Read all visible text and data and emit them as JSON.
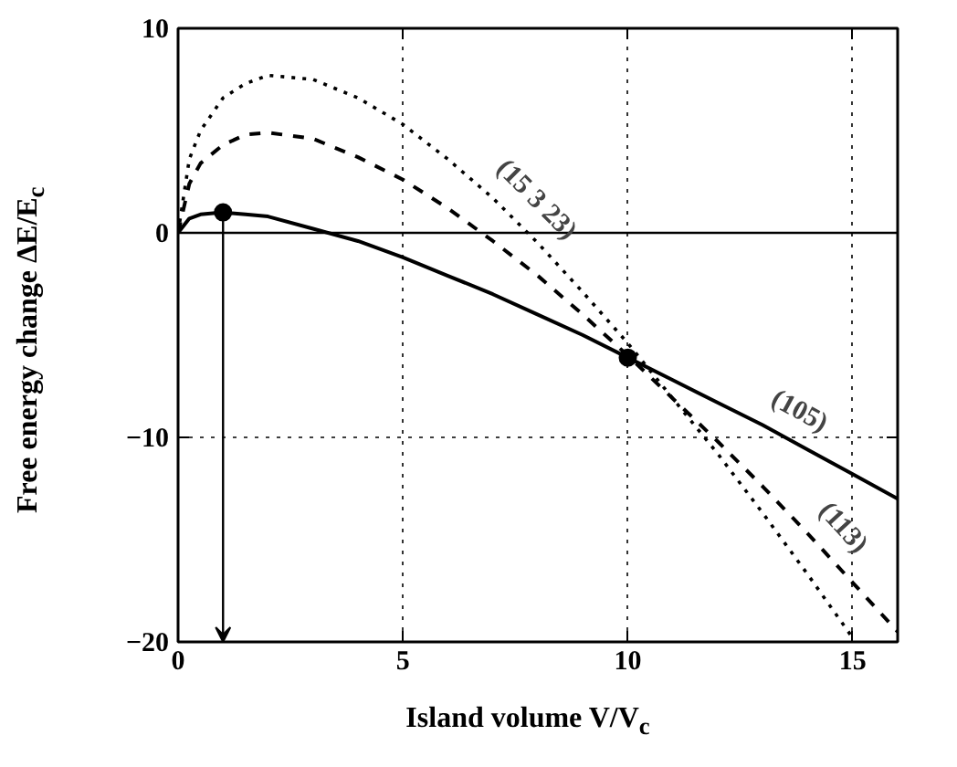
{
  "chart_data": {
    "type": "line",
    "xlabel": "Island volume V/V$_{c}$",
    "ylabel": "Free energy change ΔE/E$_{c}$",
    "x": [
      0,
      0.25,
      0.5,
      1,
      1.5,
      2,
      3,
      4,
      5,
      6,
      7,
      8,
      9,
      10,
      11,
      12,
      13,
      14,
      15,
      16
    ],
    "series": [
      {
        "color": "#000000",
        "line_style": "dotted",
        "values": [
          0,
          3.6,
          5.0,
          6.6,
          7.3,
          7.7,
          7.5,
          6.6,
          5.3,
          3.6,
          1.7,
          -0.5,
          -2.9,
          -5.4,
          -8.1,
          -10.8,
          -13.7,
          -16.7,
          -19.8,
          null
        ]
      },
      {
        "color": "#000000",
        "line_style": "solid",
        "values": [
          0,
          0.7,
          0.9,
          1,
          0.9,
          0.8,
          0.2,
          -0.4,
          -1.2,
          -2.1,
          -3.0,
          -4.0,
          -5.0,
          -6.1,
          -7.2,
          -8.3,
          -9.4,
          -10.6,
          -11.8,
          -13.0
        ]
      },
      {
        "color": "#000000",
        "line_style": "dashed",
        "values": [
          0,
          2.4,
          3.4,
          4.3,
          4.8,
          4.9,
          4.6,
          3.7,
          2.6,
          1.2,
          -0.4,
          -2.1,
          -4.0,
          -6.0,
          -8.1,
          -10.2,
          -12.4,
          -14.7,
          -17.1,
          -19.5
        ]
      },
      {
        "type": "scatter",
        "color": "#000000",
        "marker": "circle",
        "x": [
          1,
          10
        ],
        "values": [
          1,
          -6.1
        ]
      }
    ],
    "annotations": [
      {
        "text": "(15 3 23)",
        "x": 7.5,
        "y": 0.6
      },
      {
        "text": "(105)",
        "x": 13.5,
        "y": -10.0
      },
      {
        "text": "(113)",
        "x": 14.3,
        "y": -15.4
      }
    ],
    "ref_lines": [
      {
        "axis": "y",
        "value": 0,
        "color": "#000000",
        "line_style": "solid"
      }
    ],
    "xlim": [
      0,
      16
    ],
    "ylim": [
      -20,
      10
    ],
    "xticks": [
      0,
      5,
      10,
      15
    ],
    "yticks": [
      -20,
      -10,
      0,
      10
    ],
    "grid": true
  }
}
